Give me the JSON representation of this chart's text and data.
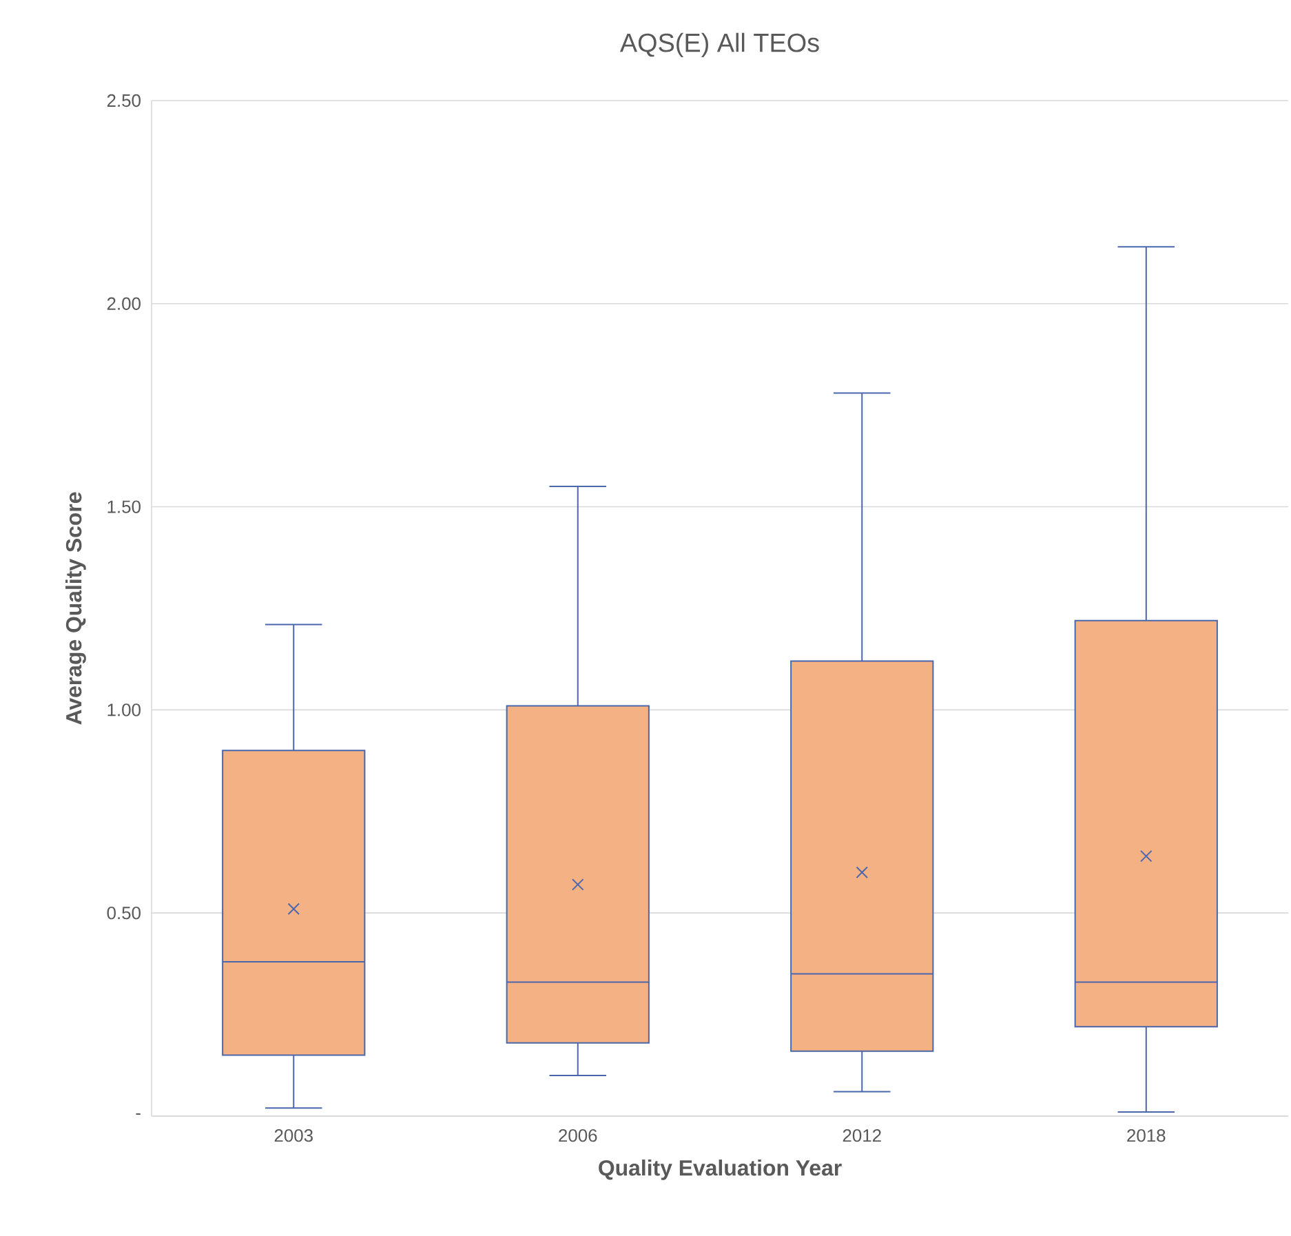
{
  "chart_data": {
    "type": "box",
    "title": "AQS(E) All TEOs",
    "xlabel": "Quality Evaluation Year",
    "ylabel": "Average Quality Score",
    "categories": [
      "2003",
      "2006",
      "2012",
      "2018"
    ],
    "color": "#f4b183",
    "boxes": [
      {
        "low": 0.02,
        "q1": 0.15,
        "median": 0.38,
        "q3": 0.9,
        "high": 1.21,
        "mean": 0.51
      },
      {
        "low": 0.1,
        "q1": 0.18,
        "median": 0.33,
        "q3": 1.01,
        "high": 1.55,
        "mean": 0.57
      },
      {
        "low": 0.06,
        "q1": 0.16,
        "median": 0.35,
        "q3": 1.12,
        "high": 1.78,
        "mean": 0.6
      },
      {
        "low": 0.01,
        "q1": 0.22,
        "median": 0.33,
        "q3": 1.22,
        "high": 2.14,
        "mean": 0.64
      }
    ],
    "ylim": [
      0,
      2.5
    ],
    "yticks": [
      {
        "value": 0,
        "label": "-"
      },
      {
        "value": 0.5,
        "label": "0.50"
      },
      {
        "value": 1.0,
        "label": "1.00"
      },
      {
        "value": 1.5,
        "label": "1.50"
      },
      {
        "value": 2.0,
        "label": "2.00"
      },
      {
        "value": 2.5,
        "label": "2.50"
      }
    ],
    "grid": "y",
    "marker": "cross"
  }
}
